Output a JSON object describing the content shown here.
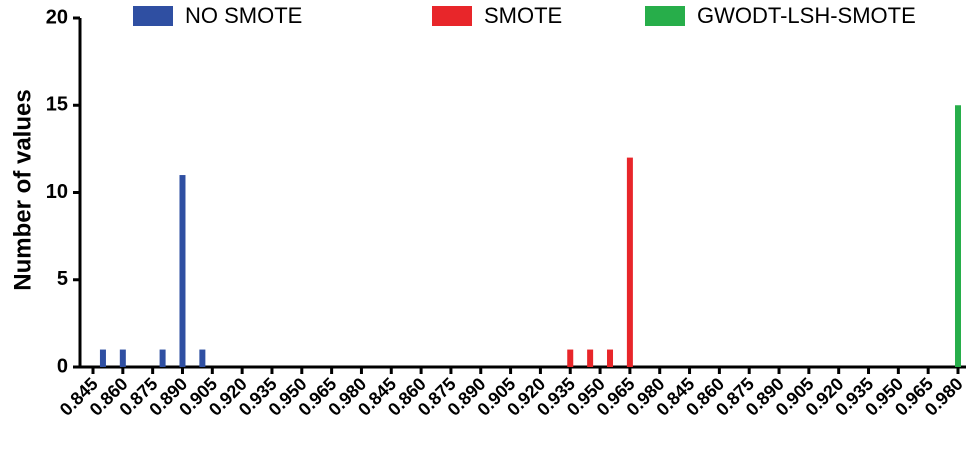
{
  "chart_data": {
    "type": "bar",
    "y_label": "Number of values",
    "categories": [
      "0.845",
      null,
      null,
      "0.860",
      null,
      null,
      "0.875",
      null,
      null,
      "0.890",
      null,
      null,
      "0.905",
      null,
      null,
      "0.920",
      null,
      null,
      "0.935",
      null,
      null,
      "0.950",
      null,
      null,
      "0.965",
      null,
      null,
      "0.980",
      null,
      null,
      "0.845",
      null,
      null,
      "0.860",
      null,
      null,
      "0.875",
      null,
      null,
      "0.890",
      null,
      null,
      "0.905",
      null,
      null,
      "0.920",
      null,
      null,
      "0.935",
      null,
      null,
      "0.950",
      null,
      null,
      "0.965",
      null,
      null,
      "0.980",
      null,
      null,
      "0.845",
      null,
      null,
      "0.860",
      null,
      null,
      "0.875",
      null,
      null,
      "0.890",
      null,
      null,
      "0.905",
      null,
      null,
      "0.920",
      null,
      null,
      "0.935",
      null,
      null,
      "0.950",
      null,
      null,
      "0.965",
      null,
      null,
      "0.980"
    ],
    "series": [
      {
        "name": "NO SMOTE",
        "color": "#2f4fa2",
        "values": [
          0,
          1,
          0,
          1,
          0,
          0,
          0,
          1,
          0,
          11,
          0,
          1,
          0,
          0,
          0,
          0,
          0,
          0,
          0,
          0,
          0,
          0,
          0,
          0,
          0,
          0,
          0,
          0,
          0,
          0,
          0,
          0,
          0,
          0,
          0,
          0,
          0,
          0,
          0,
          0,
          0,
          0,
          0,
          0,
          0,
          0,
          0,
          0,
          0,
          0,
          0,
          0,
          0,
          0,
          0,
          0,
          0,
          0,
          0,
          0,
          0,
          0,
          0,
          0,
          0,
          0,
          0,
          0,
          0,
          0,
          0,
          0,
          0,
          0,
          0,
          0,
          0,
          0,
          0,
          0,
          0,
          0,
          0,
          0,
          0,
          0,
          0,
          0
        ]
      },
      {
        "name": "SMOTE",
        "color": "#e8262a",
        "values": [
          0,
          0,
          0,
          0,
          0,
          0,
          0,
          0,
          0,
          0,
          0,
          0,
          0,
          0,
          0,
          0,
          0,
          0,
          0,
          0,
          0,
          0,
          0,
          0,
          0,
          0,
          0,
          0,
          0,
          0,
          0,
          0,
          0,
          0,
          0,
          0,
          0,
          0,
          0,
          0,
          0,
          0,
          0,
          0,
          0,
          0,
          0,
          0,
          1,
          0,
          1,
          0,
          1,
          0,
          12,
          0,
          0,
          0,
          0,
          0,
          0,
          0,
          0,
          0,
          0,
          0,
          0,
          0,
          0,
          0,
          0,
          0,
          0,
          0,
          0,
          0,
          0,
          0,
          0,
          0,
          0,
          0,
          0,
          0,
          0,
          0,
          0,
          0
        ]
      },
      {
        "name": "GWODT-LSH-SMOTE",
        "color": "#27ae4a",
        "values": [
          0,
          0,
          0,
          0,
          0,
          0,
          0,
          0,
          0,
          0,
          0,
          0,
          0,
          0,
          0,
          0,
          0,
          0,
          0,
          0,
          0,
          0,
          0,
          0,
          0,
          0,
          0,
          0,
          0,
          0,
          0,
          0,
          0,
          0,
          0,
          0,
          0,
          0,
          0,
          0,
          0,
          0,
          0,
          0,
          0,
          0,
          0,
          0,
          0,
          0,
          0,
          0,
          0,
          0,
          0,
          0,
          0,
          0,
          0,
          0,
          0,
          0,
          0,
          0,
          0,
          0,
          0,
          0,
          0,
          0,
          0,
          0,
          0,
          0,
          0,
          0,
          0,
          0,
          0,
          0,
          0,
          0,
          0,
          0,
          0,
          0,
          0,
          15
        ]
      }
    ],
    "ylim": [
      0,
      20
    ],
    "yticks": [
      0,
      5,
      10,
      15,
      20
    ]
  }
}
